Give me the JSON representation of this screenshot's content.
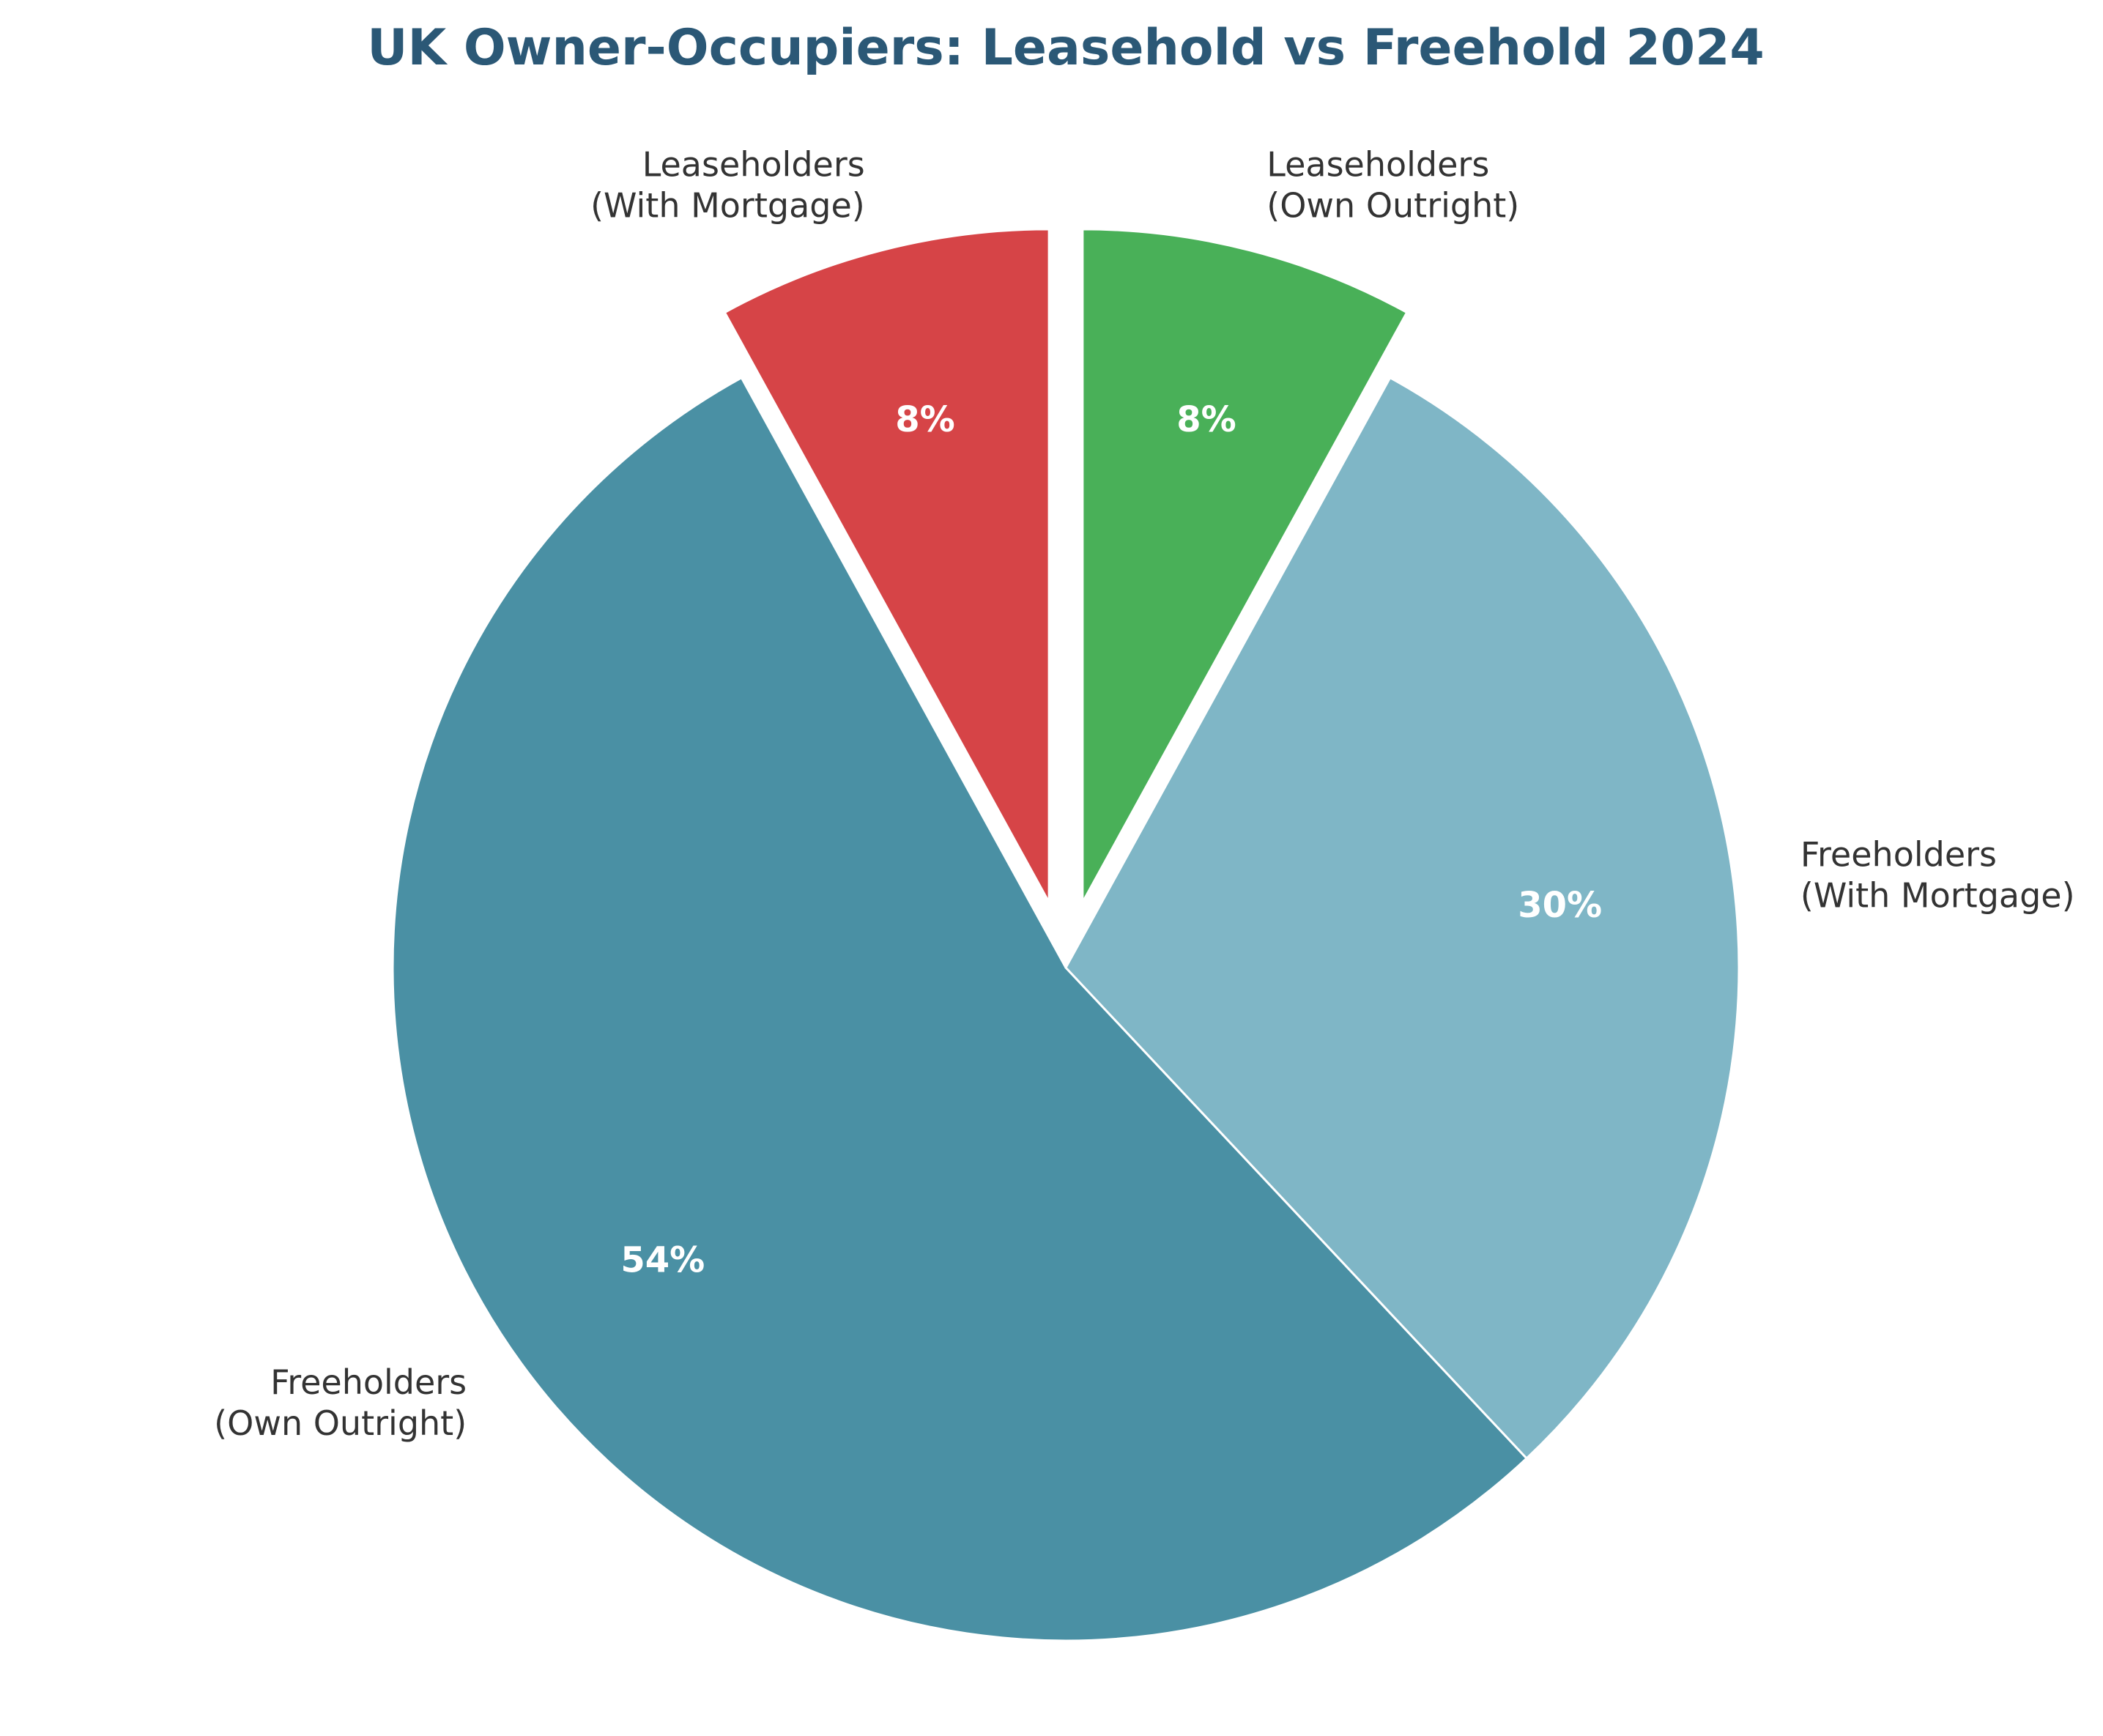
{
  "chart_data": {
    "type": "pie",
    "title": "UK Owner-Occupiers: Leasehold vs Freehold 2024",
    "title_color": "#2b5876",
    "start_angle": "top",
    "direction": "counter-clockwise",
    "slices": [
      {
        "label": [
          "Leaseholders",
          "(With Mortgage)"
        ],
        "value": 8,
        "display": "8%",
        "color": "#d64447",
        "exploded": true
      },
      {
        "label": [
          "Freeholders",
          "(Own Outright)"
        ],
        "value": 54,
        "display": "54%",
        "color": "#4a90a4",
        "exploded": false
      },
      {
        "label": [
          "Freeholders",
          "(With Mortgage)"
        ],
        "value": 30,
        "display": "30%",
        "color": "#7fb6c6",
        "exploded": false
      },
      {
        "label": [
          "Leaseholders",
          "(Own Outright)"
        ],
        "value": 8,
        "display": "8%",
        "color": "#49b058",
        "exploded": true
      }
    ]
  }
}
